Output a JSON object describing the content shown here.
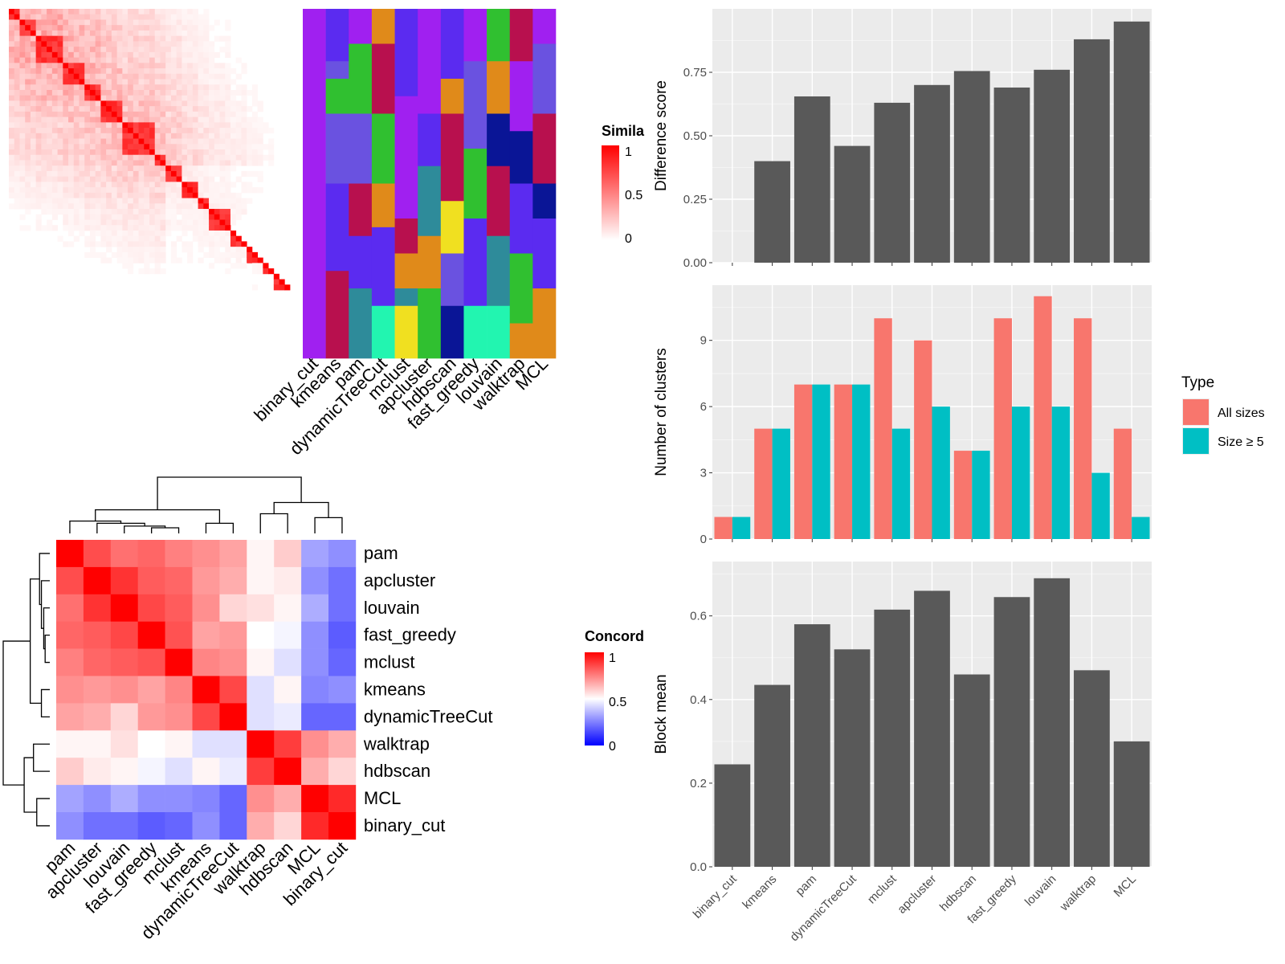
{
  "methods": [
    "binary_cut",
    "kmeans",
    "pam",
    "dynamicTreeCut",
    "mclust",
    "apcluster",
    "hdbscan",
    "fast_greedy",
    "louvain",
    "walktrap",
    "MCL"
  ],
  "similarity_legend": {
    "title": "Simila",
    "ticks": [
      "1",
      "0.5",
      "0"
    ]
  },
  "concordance_legend": {
    "title": "Concord",
    "ticks": [
      "1",
      "0.5",
      "0"
    ]
  },
  "cluster_palette": [
    "#A020F0",
    "#5B2BF0",
    "#E08A1A",
    "#B8104E",
    "#30C030",
    "#2E8B9A",
    "#6A52E0",
    "#0A1596",
    "#22F5B0",
    "#F0E020",
    "#9CC040",
    "#F07070"
  ],
  "similarity_heatmap": {
    "colors": {
      "low": "#ffffff",
      "high": "#ff0000"
    },
    "block_sizes": [
      2,
      3,
      5,
      4,
      3,
      4,
      6,
      2,
      3,
      3,
      2,
      4,
      3,
      3,
      2,
      3
    ]
  },
  "cluster_label_matrix": {
    "segments": [
      [
        40
      ],
      [
        6,
        2,
        4,
        8,
        10,
        10
      ],
      [
        4,
        8,
        8,
        6,
        6,
        8
      ],
      [
        4,
        8,
        8,
        5,
        9,
        6
      ],
      [
        10,
        14,
        4,
        4,
        2,
        6
      ],
      [
        12,
        6,
        8,
        6,
        8
      ],
      [
        8,
        4,
        10,
        6,
        6,
        6
      ],
      [
        6,
        10,
        8,
        10,
        6
      ],
      [
        6,
        6,
        6,
        8,
        8,
        6
      ],
      [
        6,
        8,
        6,
        8,
        8,
        4
      ],
      [
        4,
        8,
        8,
        4,
        8,
        8
      ]
    ],
    "labels": [
      [
        0
      ],
      [
        1,
        6,
        4,
        6,
        1,
        3
      ],
      [
        0,
        4,
        6,
        3,
        1,
        5
      ],
      [
        2,
        3,
        4,
        2,
        1,
        8
      ],
      [
        1,
        0,
        3,
        2,
        5,
        9
      ],
      [
        0,
        1,
        5,
        2,
        4
      ],
      [
        1,
        2,
        3,
        9,
        6,
        7
      ],
      [
        0,
        6,
        4,
        1,
        8
      ],
      [
        4,
        2,
        7,
        3,
        5,
        8
      ],
      [
        3,
        0,
        7,
        1,
        4,
        2
      ],
      [
        0,
        6,
        3,
        7,
        1,
        2
      ]
    ]
  },
  "concordance_heatmap": {
    "row_order": [
      "pam",
      "apcluster",
      "louvain",
      "fast_greedy",
      "mclust",
      "kmeans",
      "dynamicTreeCut",
      "walktrap",
      "hdbscan",
      "MCL",
      "binary_cut"
    ],
    "col_order": [
      "pam",
      "apcluster",
      "louvain",
      "fast_greedy",
      "mclust",
      "kmeans",
      "dynamicTreeCut",
      "walktrap",
      "hdbscan",
      "MCL",
      "binary_cut"
    ],
    "matrix": [
      [
        1.0,
        0.85,
        0.78,
        0.8,
        0.75,
        0.72,
        0.68,
        0.52,
        0.6,
        0.32,
        0.28
      ],
      [
        0.85,
        1.0,
        0.9,
        0.82,
        0.8,
        0.7,
        0.66,
        0.52,
        0.54,
        0.28,
        0.22
      ],
      [
        0.78,
        0.9,
        1.0,
        0.86,
        0.82,
        0.72,
        0.58,
        0.56,
        0.52,
        0.34,
        0.22
      ],
      [
        0.8,
        0.82,
        0.86,
        1.0,
        0.84,
        0.68,
        0.7,
        0.5,
        0.48,
        0.28,
        0.18
      ],
      [
        0.75,
        0.8,
        0.82,
        0.84,
        1.0,
        0.74,
        0.72,
        0.52,
        0.44,
        0.28,
        0.2
      ],
      [
        0.72,
        0.7,
        0.72,
        0.68,
        0.74,
        1.0,
        0.86,
        0.44,
        0.52,
        0.26,
        0.28
      ],
      [
        0.68,
        0.66,
        0.58,
        0.7,
        0.72,
        0.86,
        1.0,
        0.44,
        0.46,
        0.2,
        0.2
      ],
      [
        0.52,
        0.52,
        0.56,
        0.5,
        0.52,
        0.44,
        0.44,
        1.0,
        0.88,
        0.72,
        0.66
      ],
      [
        0.6,
        0.54,
        0.52,
        0.48,
        0.44,
        0.52,
        0.46,
        0.88,
        1.0,
        0.66,
        0.58
      ],
      [
        0.32,
        0.28,
        0.34,
        0.28,
        0.28,
        0.26,
        0.2,
        0.72,
        0.66,
        1.0,
        0.92
      ],
      [
        0.28,
        0.22,
        0.22,
        0.18,
        0.2,
        0.28,
        0.2,
        0.66,
        0.58,
        0.92,
        1.0
      ]
    ],
    "colors": {
      "low": "#0000ff",
      "mid": "#ffffff",
      "high": "#ff0000"
    }
  },
  "chart_data": [
    {
      "type": "bar",
      "categories": [
        "binary_cut",
        "kmeans",
        "pam",
        "dynamicTreeCut",
        "mclust",
        "apcluster",
        "hdbscan",
        "fast_greedy",
        "louvain",
        "walktrap",
        "MCL"
      ],
      "values": [
        0.0,
        0.4,
        0.655,
        0.46,
        0.63,
        0.7,
        0.755,
        0.69,
        0.76,
        0.88,
        0.95
      ],
      "ylabel": "Difference score",
      "ylim": [
        0,
        1.0
      ],
      "yticks": [
        "0.00",
        "0.25",
        "0.50",
        "0.75"
      ],
      "bar_color": "#595959"
    },
    {
      "type": "bar",
      "categories": [
        "binary_cut",
        "kmeans",
        "pam",
        "dynamicTreeCut",
        "mclust",
        "apcluster",
        "hdbscan",
        "fast_greedy",
        "louvain",
        "walktrap",
        "MCL"
      ],
      "series": [
        {
          "name": "All sizes",
          "values": [
            1,
            5,
            7,
            7,
            10,
            9,
            4,
            10,
            11,
            10,
            5
          ],
          "color": "#F8766D"
        },
        {
          "name": "Size ≥ 5",
          "values": [
            1,
            5,
            7,
            7,
            5,
            6,
            4,
            6,
            6,
            3,
            1
          ],
          "color": "#00BFC4"
        }
      ],
      "ylabel": "Number of clusters",
      "ylim": [
        0,
        11.5
      ],
      "yticks": [
        "0",
        "3",
        "6",
        "9"
      ],
      "legend_title": "Type",
      "legend_position": "right"
    },
    {
      "type": "bar",
      "categories": [
        "binary_cut",
        "kmeans",
        "pam",
        "dynamicTreeCut",
        "mclust",
        "apcluster",
        "hdbscan",
        "fast_greedy",
        "louvain",
        "walktrap",
        "MCL"
      ],
      "values": [
        0.245,
        0.435,
        0.58,
        0.52,
        0.615,
        0.66,
        0.46,
        0.645,
        0.69,
        0.47,
        0.3
      ],
      "ylabel": "Block mean",
      "ylim": [
        0,
        0.73
      ],
      "yticks": [
        "0.0",
        "0.2",
        "0.4",
        "0.6"
      ],
      "bar_color": "#595959"
    }
  ]
}
